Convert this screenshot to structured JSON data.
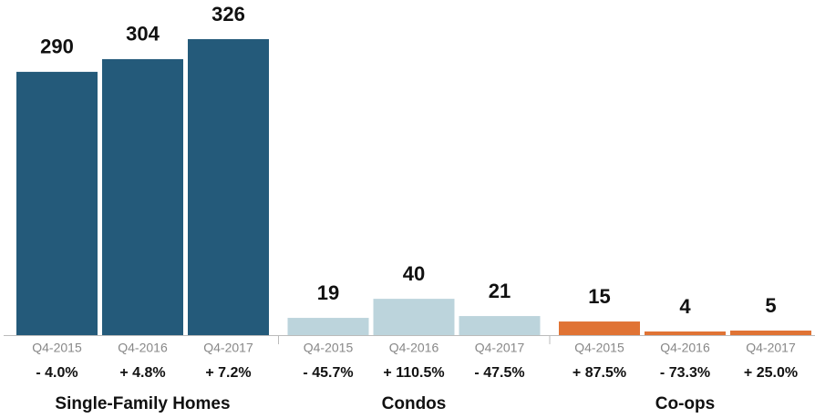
{
  "chart_data": {
    "type": "grouped-bar",
    "groups": [
      {
        "name": "Single-Family Homes",
        "color": "#245a7a",
        "categories": [
          "Q4-2015",
          "Q4-2016",
          "Q4-2017"
        ],
        "values": [
          290,
          304,
          326
        ],
        "changes": [
          "- 4.0%",
          "+ 4.8%",
          "+ 7.2%"
        ]
      },
      {
        "name": "Condos",
        "color": "#bcd4dc",
        "categories": [
          "Q4-2015",
          "Q4-2016",
          "Q4-2017"
        ],
        "values": [
          19,
          40,
          21
        ],
        "changes": [
          "- 45.7%",
          "+ 110.5%",
          "- 47.5%"
        ]
      },
      {
        "name": "Co-ops",
        "color": "#e07334",
        "categories": [
          "Q4-2015",
          "Q4-2016",
          "Q4-2017"
        ],
        "values": [
          15,
          4,
          5
        ],
        "changes": [
          "+ 87.5%",
          "- 73.3%",
          "+ 25.0%"
        ]
      }
    ]
  }
}
